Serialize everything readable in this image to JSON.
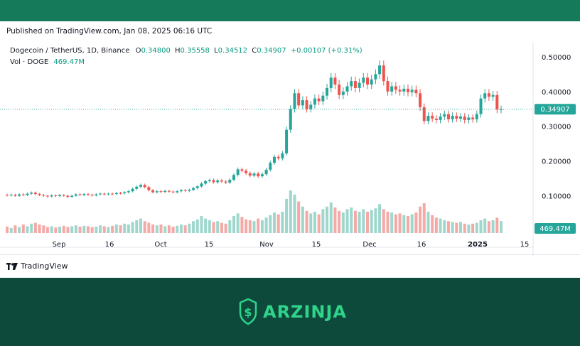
{
  "published": "Published on TradingView.com, Jan 08, 2025 06:16 UTC",
  "legend": {
    "symbol": "Dogecoin / TetherUS, 1D, Binance",
    "o_label": "O",
    "o": "0.34800",
    "h_label": "H",
    "h": "0.35558",
    "l_label": "L",
    "l": "0.34512",
    "c_label": "C",
    "c": "0.34907",
    "change": "+0.00107 (+0.31%)"
  },
  "volume": {
    "label": "Vol · DOGE",
    "value": "469.47M"
  },
  "price_tag": "0.34907",
  "volume_tag": "469.47M",
  "tradingview_label": "TradingView",
  "brand": {
    "name": "ARZINJA"
  },
  "colors": {
    "up": "#26a69a",
    "down": "#ef5350",
    "vol_up": "#9fd7cd",
    "vol_down": "#f4a9a7",
    "brand": "#2fd38a",
    "background": "#0d4a3c",
    "topbar": "#157a5a"
  },
  "chart_data": {
    "type": "candlestick",
    "x_ticks": [
      "Sep",
      "16",
      "Oct",
      "15",
      "Nov",
      "15",
      "Dec",
      "16",
      "2025",
      "15"
    ],
    "y_ticks": [
      "0.50000",
      "0.40000",
      "0.30000",
      "0.20000",
      "0.10000"
    ],
    "ylim": [
      0.05,
      0.51
    ],
    "last_price": 0.34907,
    "candles": [
      {
        "o": 0.103,
        "c": 0.101
      },
      {
        "o": 0.101,
        "c": 0.103
      },
      {
        "o": 0.103,
        "c": 0.1
      },
      {
        "o": 0.1,
        "c": 0.104
      },
      {
        "o": 0.104,
        "c": 0.102
      },
      {
        "o": 0.102,
        "c": 0.106
      },
      {
        "o": 0.106,
        "c": 0.109
      },
      {
        "o": 0.109,
        "c": 0.105
      },
      {
        "o": 0.105,
        "c": 0.102
      },
      {
        "o": 0.102,
        "c": 0.1
      },
      {
        "o": 0.1,
        "c": 0.098
      },
      {
        "o": 0.098,
        "c": 0.101
      },
      {
        "o": 0.101,
        "c": 0.099
      },
      {
        "o": 0.099,
        "c": 0.102
      },
      {
        "o": 0.102,
        "c": 0.1
      },
      {
        "o": 0.1,
        "c": 0.097
      },
      {
        "o": 0.097,
        "c": 0.1
      },
      {
        "o": 0.1,
        "c": 0.104
      },
      {
        "o": 0.104,
        "c": 0.102
      },
      {
        "o": 0.102,
        "c": 0.105
      },
      {
        "o": 0.105,
        "c": 0.103
      },
      {
        "o": 0.103,
        "c": 0.101
      },
      {
        "o": 0.101,
        "c": 0.104
      },
      {
        "o": 0.104,
        "c": 0.106
      },
      {
        "o": 0.106,
        "c": 0.104
      },
      {
        "o": 0.104,
        "c": 0.106
      },
      {
        "o": 0.106,
        "c": 0.105
      },
      {
        "o": 0.105,
        "c": 0.108
      },
      {
        "o": 0.108,
        "c": 0.107
      },
      {
        "o": 0.107,
        "c": 0.11
      },
      {
        "o": 0.11,
        "c": 0.113
      },
      {
        "o": 0.113,
        "c": 0.12
      },
      {
        "o": 0.12,
        "c": 0.126
      },
      {
        "o": 0.126,
        "c": 0.131
      },
      {
        "o": 0.131,
        "c": 0.125
      },
      {
        "o": 0.125,
        "c": 0.116
      },
      {
        "o": 0.116,
        "c": 0.11
      },
      {
        "o": 0.11,
        "c": 0.113
      },
      {
        "o": 0.113,
        "c": 0.111
      },
      {
        "o": 0.111,
        "c": 0.114
      },
      {
        "o": 0.114,
        "c": 0.112
      },
      {
        "o": 0.112,
        "c": 0.11
      },
      {
        "o": 0.11,
        "c": 0.113
      },
      {
        "o": 0.113,
        "c": 0.116
      },
      {
        "o": 0.116,
        "c": 0.114
      },
      {
        "o": 0.114,
        "c": 0.117
      },
      {
        "o": 0.117,
        "c": 0.122
      },
      {
        "o": 0.122,
        "c": 0.127
      },
      {
        "o": 0.127,
        "c": 0.135
      },
      {
        "o": 0.135,
        "c": 0.142
      },
      {
        "o": 0.142,
        "c": 0.145
      },
      {
        "o": 0.145,
        "c": 0.139
      },
      {
        "o": 0.139,
        "c": 0.144
      },
      {
        "o": 0.144,
        "c": 0.141
      },
      {
        "o": 0.141,
        "c": 0.138
      },
      {
        "o": 0.138,
        "c": 0.146
      },
      {
        "o": 0.146,
        "c": 0.16
      },
      {
        "o": 0.16,
        "c": 0.176
      },
      {
        "o": 0.176,
        "c": 0.172
      },
      {
        "o": 0.172,
        "c": 0.165
      },
      {
        "o": 0.165,
        "c": 0.158
      },
      {
        "o": 0.158,
        "c": 0.164
      },
      {
        "o": 0.164,
        "c": 0.156
      },
      {
        "o": 0.156,
        "c": 0.162
      },
      {
        "o": 0.162,
        "c": 0.175
      },
      {
        "o": 0.175,
        "c": 0.195
      },
      {
        "o": 0.195,
        "c": 0.212
      },
      {
        "o": 0.212,
        "c": 0.208
      },
      {
        "o": 0.208,
        "c": 0.222
      },
      {
        "o": 0.222,
        "c": 0.29
      },
      {
        "o": 0.29,
        "c": 0.35
      },
      {
        "o": 0.35,
        "c": 0.395
      },
      {
        "o": 0.395,
        "c": 0.36
      },
      {
        "o": 0.36,
        "c": 0.375
      },
      {
        "o": 0.375,
        "c": 0.35
      },
      {
        "o": 0.35,
        "c": 0.362
      },
      {
        "o": 0.362,
        "c": 0.38
      },
      {
        "o": 0.38,
        "c": 0.372
      },
      {
        "o": 0.372,
        "c": 0.388
      },
      {
        "o": 0.388,
        "c": 0.41
      },
      {
        "o": 0.41,
        "c": 0.44
      },
      {
        "o": 0.44,
        "c": 0.42
      },
      {
        "o": 0.42,
        "c": 0.39
      },
      {
        "o": 0.39,
        "c": 0.4
      },
      {
        "o": 0.4,
        "c": 0.415
      },
      {
        "o": 0.415,
        "c": 0.43
      },
      {
        "o": 0.43,
        "c": 0.41
      },
      {
        "o": 0.41,
        "c": 0.425
      },
      {
        "o": 0.425,
        "c": 0.44
      },
      {
        "o": 0.44,
        "c": 0.42
      },
      {
        "o": 0.42,
        "c": 0.435
      },
      {
        "o": 0.435,
        "c": 0.45
      },
      {
        "o": 0.45,
        "c": 0.475
      },
      {
        "o": 0.475,
        "c": 0.43
      },
      {
        "o": 0.43,
        "c": 0.4
      },
      {
        "o": 0.4,
        "c": 0.415
      },
      {
        "o": 0.415,
        "c": 0.405
      },
      {
        "o": 0.405,
        "c": 0.4
      },
      {
        "o": 0.4,
        "c": 0.408
      },
      {
        "o": 0.408,
        "c": 0.398
      },
      {
        "o": 0.398,
        "c": 0.405
      },
      {
        "o": 0.405,
        "c": 0.395
      },
      {
        "o": 0.395,
        "c": 0.355
      },
      {
        "o": 0.355,
        "c": 0.315
      },
      {
        "o": 0.315,
        "c": 0.33
      },
      {
        "o": 0.33,
        "c": 0.322
      },
      {
        "o": 0.322,
        "c": 0.318
      },
      {
        "o": 0.318,
        "c": 0.328
      },
      {
        "o": 0.328,
        "c": 0.335
      },
      {
        "o": 0.335,
        "c": 0.32
      },
      {
        "o": 0.32,
        "c": 0.33
      },
      {
        "o": 0.33,
        "c": 0.322
      },
      {
        "o": 0.322,
        "c": 0.328
      },
      {
        "o": 0.328,
        "c": 0.318
      },
      {
        "o": 0.318,
        "c": 0.325
      },
      {
        "o": 0.325,
        "c": 0.32
      },
      {
        "o": 0.32,
        "c": 0.335
      },
      {
        "o": 0.335,
        "c": 0.38
      },
      {
        "o": 0.38,
        "c": 0.395
      },
      {
        "o": 0.395,
        "c": 0.385
      },
      {
        "o": 0.385,
        "c": 0.39
      },
      {
        "o": 0.39,
        "c": 0.348
      },
      {
        "o": 0.348,
        "c": 0.349
      }
    ],
    "volume_relative": [
      0.15,
      0.12,
      0.18,
      0.14,
      0.2,
      0.16,
      0.22,
      0.24,
      0.2,
      0.18,
      0.14,
      0.16,
      0.13,
      0.15,
      0.17,
      0.14,
      0.16,
      0.18,
      0.15,
      0.17,
      0.16,
      0.14,
      0.15,
      0.18,
      0.16,
      0.14,
      0.17,
      0.2,
      0.18,
      0.22,
      0.2,
      0.26,
      0.3,
      0.34,
      0.28,
      0.24,
      0.2,
      0.18,
      0.2,
      0.16,
      0.18,
      0.15,
      0.17,
      0.2,
      0.18,
      0.22,
      0.28,
      0.32,
      0.4,
      0.34,
      0.3,
      0.26,
      0.28,
      0.24,
      0.22,
      0.3,
      0.4,
      0.46,
      0.38,
      0.32,
      0.3,
      0.28,
      0.34,
      0.3,
      0.36,
      0.42,
      0.48,
      0.44,
      0.5,
      0.8,
      1.0,
      0.9,
      0.74,
      0.62,
      0.52,
      0.46,
      0.5,
      0.44,
      0.56,
      0.62,
      0.72,
      0.6,
      0.52,
      0.48,
      0.56,
      0.6,
      0.52,
      0.5,
      0.56,
      0.5,
      0.54,
      0.58,
      0.68,
      0.56,
      0.5,
      0.48,
      0.44,
      0.46,
      0.42,
      0.4,
      0.44,
      0.48,
      0.62,
      0.7,
      0.5,
      0.42,
      0.36,
      0.34,
      0.3,
      0.28,
      0.26,
      0.24,
      0.26,
      0.22,
      0.2,
      0.22,
      0.24,
      0.3,
      0.34,
      0.28,
      0.3,
      0.36,
      0.28
    ]
  }
}
